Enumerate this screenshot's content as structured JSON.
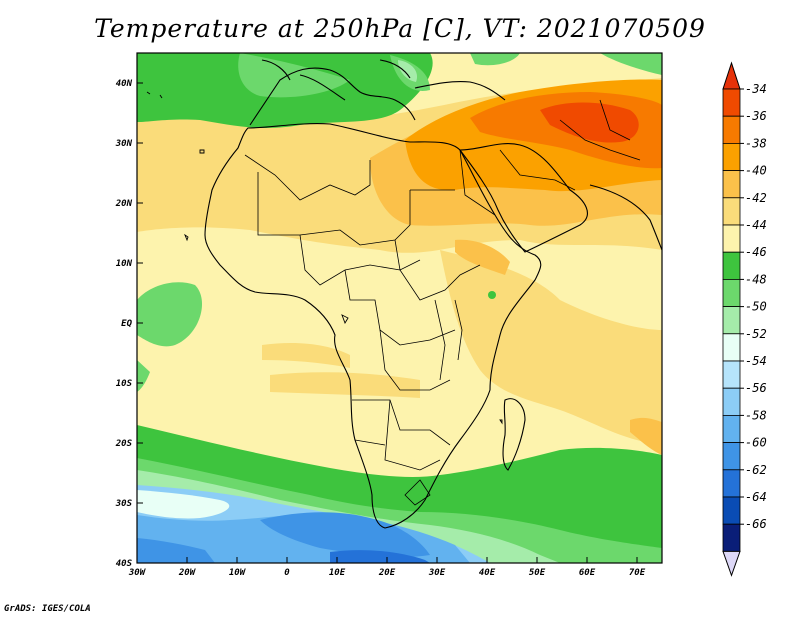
{
  "title": "Temperature at 250hPa [C], VT: 2021070509",
  "credit": "GrADS: IGES/COLA",
  "map": {
    "lat_labels": [
      "40N",
      "30N",
      "20N",
      "10N",
      "EQ",
      "10S",
      "20S",
      "30S",
      "40S"
    ],
    "lon_labels": [
      "30W",
      "20W",
      "10W",
      "0",
      "10E",
      "20E",
      "30E",
      "40E",
      "50E",
      "60E",
      "70E"
    ]
  },
  "colorbar": {
    "labels": [
      "-34",
      "-36",
      "-38",
      "-40",
      "-42",
      "-44",
      "-46",
      "-48",
      "-50",
      "-52",
      "-54",
      "-56",
      "-58",
      "-60",
      "-62",
      "-64",
      "-66"
    ],
    "colors": [
      "#f04a00",
      "#f77a00",
      "#fba100",
      "#fbc14a",
      "#fadc7a",
      "#fdf3ad",
      "#3ec43e",
      "#6cd86c",
      "#a5ecaa",
      "#e8fff6",
      "#b6e4fb",
      "#8ccdf6",
      "#62b2ef",
      "#3f94e6",
      "#2472d8",
      "#0a4cb4",
      "#0a1e78"
    ],
    "top_arrow_color": "#e6320a",
    "bottom_arrow_color": "#ddd8f7"
  }
}
